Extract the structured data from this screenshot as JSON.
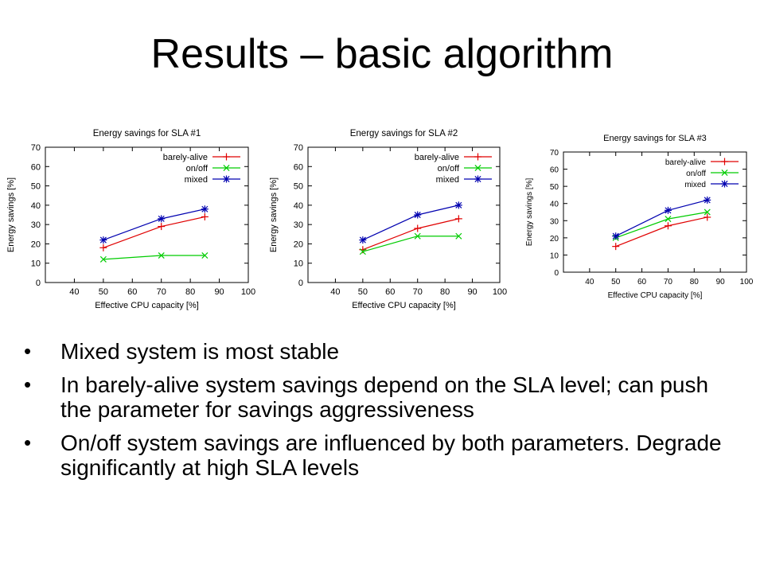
{
  "slide": {
    "title": "Results – basic algorithm",
    "bullets": [
      "Mixed system is most stable",
      "In barely-alive system savings depend on the SLA level; can push the parameter for savings aggressiveness",
      "On/off system savings are influenced by both parameters. Degrade significantly at high SLA levels"
    ]
  },
  "chart_data": [
    {
      "type": "line",
      "title": "Energy savings for SLA #1",
      "xlabel": "Effective CPU capacity [%]",
      "ylabel": "Energy savings [%]",
      "xlim": [
        30,
        100
      ],
      "ylim": [
        0,
        70
      ],
      "xticks": [
        40,
        50,
        60,
        70,
        80,
        90,
        100
      ],
      "yticks": [
        0,
        10,
        20,
        30,
        40,
        50,
        60,
        70
      ],
      "grid": false,
      "legend_position": "top-right",
      "series": [
        {
          "name": "barely-alive",
          "color": "#e00000",
          "marker": "plus",
          "x": [
            50,
            70,
            85
          ],
          "y": [
            18,
            29,
            34
          ]
        },
        {
          "name": "on/off",
          "color": "#00cc00",
          "marker": "x",
          "x": [
            50,
            70,
            85
          ],
          "y": [
            12,
            14,
            14
          ]
        },
        {
          "name": "mixed",
          "color": "#0000b0",
          "marker": "star",
          "x": [
            50,
            70,
            85
          ],
          "y": [
            22,
            33,
            38
          ]
        }
      ]
    },
    {
      "type": "line",
      "title": "Energy savings for SLA #2",
      "xlabel": "Effective CPU capacity [%]",
      "ylabel": "Energy savings [%]",
      "xlim": [
        30,
        100
      ],
      "ylim": [
        0,
        70
      ],
      "xticks": [
        40,
        50,
        60,
        70,
        80,
        90,
        100
      ],
      "yticks": [
        0,
        10,
        20,
        30,
        40,
        50,
        60,
        70
      ],
      "grid": false,
      "legend_position": "top-right",
      "series": [
        {
          "name": "barely-alive",
          "color": "#e00000",
          "marker": "plus",
          "x": [
            50,
            70,
            85
          ],
          "y": [
            17,
            28,
            33
          ]
        },
        {
          "name": "on/off",
          "color": "#00cc00",
          "marker": "x",
          "x": [
            50,
            70,
            85
          ],
          "y": [
            16,
            24,
            24
          ]
        },
        {
          "name": "mixed",
          "color": "#0000b0",
          "marker": "star",
          "x": [
            50,
            70,
            85
          ],
          "y": [
            22,
            35,
            40
          ]
        }
      ]
    },
    {
      "type": "line",
      "title": "Energy savings for SLA #3",
      "xlabel": "Effective CPU capacity [%]",
      "ylabel": "Energy savings [%]",
      "xlim": [
        30,
        100
      ],
      "ylim": [
        0,
        70
      ],
      "xticks": [
        40,
        50,
        60,
        70,
        80,
        90,
        100
      ],
      "yticks": [
        0,
        10,
        20,
        30,
        40,
        50,
        60,
        70
      ],
      "grid": false,
      "legend_position": "top-right",
      "series": [
        {
          "name": "barely-alive",
          "color": "#e00000",
          "marker": "plus",
          "x": [
            50,
            70,
            85
          ],
          "y": [
            15,
            27,
            32
          ]
        },
        {
          "name": "on/off",
          "color": "#00cc00",
          "marker": "x",
          "x": [
            50,
            70,
            85
          ],
          "y": [
            20,
            31,
            35
          ]
        },
        {
          "name": "mixed",
          "color": "#0000b0",
          "marker": "star",
          "x": [
            50,
            70,
            85
          ],
          "y": [
            21,
            36,
            42
          ]
        }
      ]
    }
  ]
}
